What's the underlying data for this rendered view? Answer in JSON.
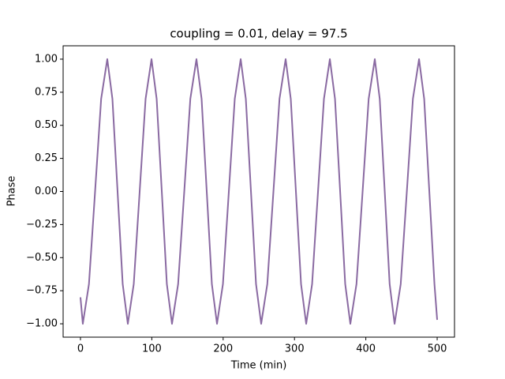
{
  "chart_data": {
    "type": "line",
    "title": "coupling = 0.01, delay = 97.5",
    "x_label": "Time (min)",
    "y_label": "Phase",
    "x": [
      0,
      3.3,
      11.9,
      20.5,
      29.0,
      37.6,
      44.8,
      52.0,
      59.2,
      66.4,
      74.7,
      83.0,
      91.3,
      99.6,
      106.8,
      114.0,
      121.1,
      128.3,
      136.9,
      145.5,
      154.0,
      162.6,
      169.8,
      177.0,
      184.2,
      191.4,
      199.7,
      208.0,
      216.3,
      224.6,
      231.8,
      239.0,
      246.1,
      253.3,
      261.9,
      270.5,
      279.0,
      287.6,
      294.8,
      302.0,
      309.2,
      316.4,
      324.7,
      333.0,
      341.3,
      349.6,
      356.8,
      364.0,
      371.1,
      378.3,
      386.9,
      395.5,
      404.0,
      412.6,
      419.5,
      426.5,
      433.4,
      440.3,
      448.9,
      457.5,
      466.0,
      474.6,
      481.8,
      489.0,
      496.2,
      500
    ],
    "series": [
      {
        "color": "#8a6aa2",
        "values": [
          -0.8,
          -1,
          -0.7,
          0,
          0.7,
          1,
          0.7,
          0,
          -0.7,
          -1,
          -0.7,
          0,
          0.7,
          1,
          0.7,
          0,
          -0.7,
          -1,
          -0.7,
          0,
          0.7,
          1,
          0.7,
          0,
          -0.7,
          -1,
          -0.7,
          0,
          0.7,
          1,
          0.7,
          0,
          -0.7,
          -1,
          -0.7,
          0,
          0.7,
          1,
          0.7,
          0,
          -0.7,
          -1,
          -0.7,
          0,
          0.7,
          1,
          0.7,
          0,
          -0.7,
          -1,
          -0.7,
          0,
          0.7,
          1,
          0.7,
          0,
          -0.7,
          -1,
          -0.7,
          0,
          0.7,
          1,
          0.7,
          0,
          -0.7,
          -0.97
        ]
      }
    ],
    "xlim": [
      -24.3,
      524.3
    ],
    "ylim": [
      -1.101,
      1.101
    ],
    "xticks": [
      0,
      100,
      200,
      300,
      400,
      500
    ],
    "yticks": [
      {
        "value": -1,
        "label": "−1.00"
      },
      {
        "value": -0.75,
        "label": "−0.75"
      },
      {
        "value": -0.5,
        "label": "−0.50"
      },
      {
        "value": -0.25,
        "label": "−0.25"
      },
      {
        "value": 0,
        "label": "0.00"
      },
      {
        "value": 0.25,
        "label": "0.25"
      },
      {
        "value": 0.5,
        "label": "0.50"
      },
      {
        "value": 0.75,
        "label": "0.75"
      },
      {
        "value": 1,
        "label": "1.00"
      }
    ],
    "grid": false
  }
}
